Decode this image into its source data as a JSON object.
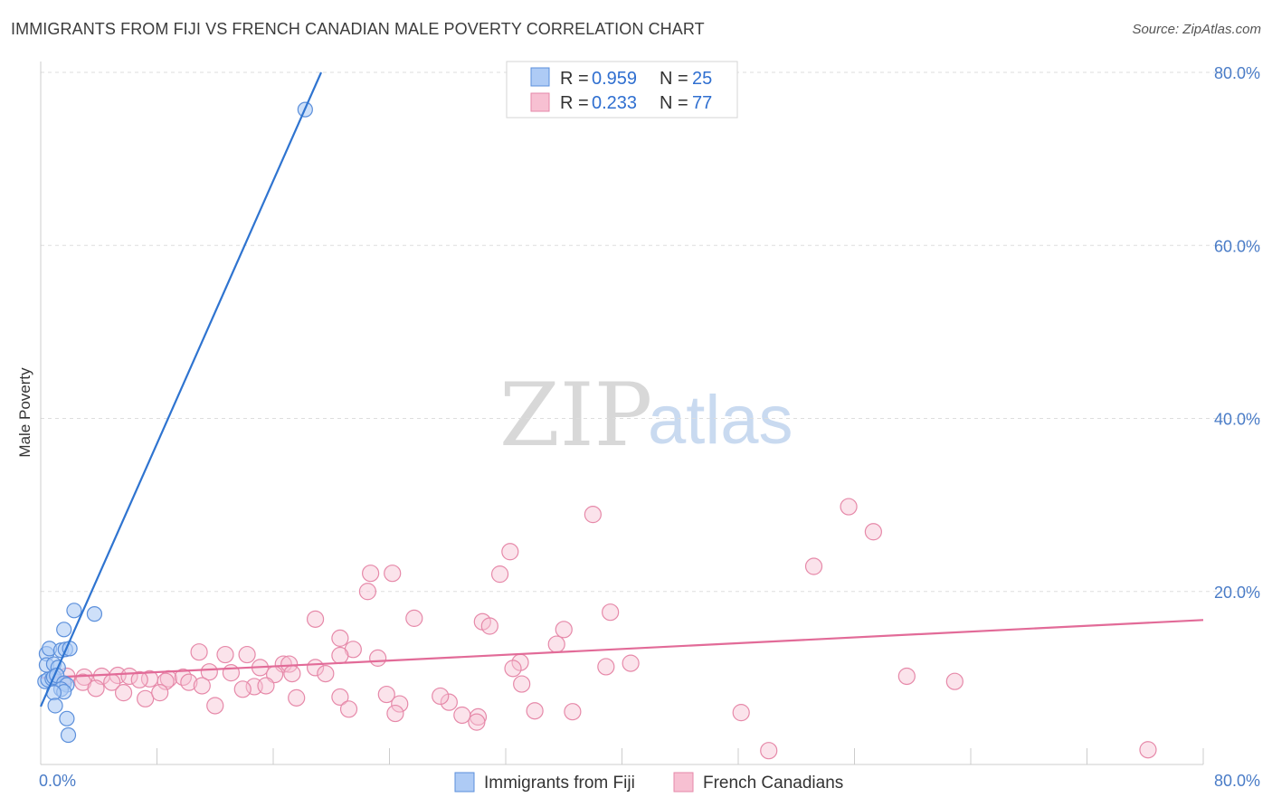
{
  "title": "IMMIGRANTS FROM FIJI VS FRENCH CANADIAN MALE POVERTY CORRELATION CHART",
  "source": "Source: ZipAtlas.com",
  "watermark": {
    "zip": "ZIP",
    "atlas": "atlas"
  },
  "colors": {
    "fiji_fill": "#aecbf5",
    "fiji_stroke": "#5b8fdb",
    "fiji_line": "#2f74d0",
    "fc_fill": "#f7c0d2",
    "fc_stroke": "#e689a9",
    "fc_line": "#e26b98",
    "grid": "#dddddd",
    "tick_text": "#4a7cc7"
  },
  "legend": {
    "items": [
      {
        "r_label": "R = ",
        "r_value": "0.959",
        "n_label": "N = ",
        "n_value": "25"
      },
      {
        "r_label": "R = ",
        "r_value": "0.233",
        "n_label": "N = ",
        "n_value": "77"
      }
    ]
  },
  "chart_data": {
    "type": "scatter",
    "xlabel": "",
    "ylabel": "Male Poverty",
    "xlim": [
      0,
      80
    ],
    "ylim": [
      0,
      80
    ],
    "x_tick_labels": [
      "0.0%",
      "80.0%"
    ],
    "y_ticks": [
      20,
      40,
      60,
      80
    ],
    "y_tick_labels": [
      "20.0%",
      "40.0%",
      "60.0%",
      "80.0%"
    ],
    "grid": "horizontal dashed",
    "legend_position": "top-center",
    "series": [
      {
        "name": "Immigrants from Fiji",
        "points": [
          [
            18.2,
            75.7
          ],
          [
            2.3,
            17.8
          ],
          [
            3.7,
            17.4
          ],
          [
            1.6,
            15.6
          ],
          [
            0.4,
            12.8
          ],
          [
            0.6,
            13.4
          ],
          [
            1.4,
            13.2
          ],
          [
            1.7,
            13.3
          ],
          [
            2.0,
            13.4
          ],
          [
            0.4,
            11.5
          ],
          [
            0.9,
            11.6
          ],
          [
            1.2,
            11.2
          ],
          [
            0.3,
            9.6
          ],
          [
            0.5,
            9.8
          ],
          [
            0.8,
            9.9
          ],
          [
            0.9,
            10.1
          ],
          [
            1.1,
            10.3
          ],
          [
            1.6,
            9.4
          ],
          [
            1.8,
            9.2
          ],
          [
            1.4,
            8.7
          ],
          [
            1.6,
            8.4
          ],
          [
            0.9,
            8.3
          ],
          [
            1.0,
            6.8
          ],
          [
            1.8,
            5.3
          ],
          [
            1.9,
            3.4
          ]
        ],
        "trend": {
          "x0": 0.0,
          "y0": 6.7,
          "x1": 19.3,
          "y1": 80.0
        }
      },
      {
        "name": "French Canadians",
        "points": [
          [
            38.0,
            28.9
          ],
          [
            55.6,
            29.8
          ],
          [
            57.3,
            26.9
          ],
          [
            32.3,
            24.6
          ],
          [
            31.6,
            22.0
          ],
          [
            53.2,
            22.9
          ],
          [
            22.7,
            22.1
          ],
          [
            24.2,
            22.1
          ],
          [
            22.5,
            20.0
          ],
          [
            18.9,
            16.8
          ],
          [
            25.7,
            16.9
          ],
          [
            36.0,
            15.6
          ],
          [
            30.4,
            16.5
          ],
          [
            39.2,
            17.6
          ],
          [
            30.9,
            16.0
          ],
          [
            20.6,
            14.6
          ],
          [
            21.5,
            13.3
          ],
          [
            35.5,
            13.9
          ],
          [
            10.9,
            13.0
          ],
          [
            12.7,
            12.7
          ],
          [
            14.2,
            12.7
          ],
          [
            20.6,
            12.6
          ],
          [
            23.2,
            12.3
          ],
          [
            16.7,
            11.6
          ],
          [
            15.1,
            11.2
          ],
          [
            17.1,
            11.6
          ],
          [
            18.9,
            11.2
          ],
          [
            33.0,
            11.8
          ],
          [
            38.9,
            11.3
          ],
          [
            32.5,
            11.1
          ],
          [
            40.6,
            11.7
          ],
          [
            1.8,
            10.2
          ],
          [
            3.0,
            10.1
          ],
          [
            4.2,
            10.2
          ],
          [
            5.3,
            10.3
          ],
          [
            6.1,
            10.2
          ],
          [
            7.5,
            9.9
          ],
          [
            8.8,
            9.9
          ],
          [
            9.8,
            10.1
          ],
          [
            11.6,
            10.7
          ],
          [
            13.1,
            10.6
          ],
          [
            16.1,
            10.4
          ],
          [
            17.3,
            10.5
          ],
          [
            19.6,
            10.5
          ],
          [
            2.9,
            9.5
          ],
          [
            4.9,
            9.5
          ],
          [
            6.8,
            9.8
          ],
          [
            8.6,
            9.6
          ],
          [
            10.2,
            9.5
          ],
          [
            11.1,
            9.1
          ],
          [
            14.7,
            9.0
          ],
          [
            15.5,
            9.1
          ],
          [
            33.1,
            9.3
          ],
          [
            59.6,
            10.2
          ],
          [
            62.9,
            9.6
          ],
          [
            3.8,
            8.8
          ],
          [
            5.7,
            8.3
          ],
          [
            7.2,
            7.6
          ],
          [
            8.2,
            8.3
          ],
          [
            12.0,
            6.8
          ],
          [
            13.9,
            8.7
          ],
          [
            20.6,
            7.8
          ],
          [
            23.8,
            8.1
          ],
          [
            24.7,
            7.0
          ],
          [
            21.2,
            6.4
          ],
          [
            28.1,
            7.2
          ],
          [
            24.4,
            5.9
          ],
          [
            27.5,
            7.9
          ],
          [
            29.0,
            5.7
          ],
          [
            30.1,
            5.5
          ],
          [
            30.0,
            4.9
          ],
          [
            34.0,
            6.2
          ],
          [
            36.6,
            6.1
          ],
          [
            48.2,
            6.0
          ],
          [
            50.1,
            1.6
          ],
          [
            76.2,
            1.7
          ],
          [
            17.6,
            7.7
          ]
        ],
        "trend": {
          "x0": 0.0,
          "y0": 10.0,
          "x1": 80.0,
          "y1": 16.7
        }
      }
    ]
  }
}
